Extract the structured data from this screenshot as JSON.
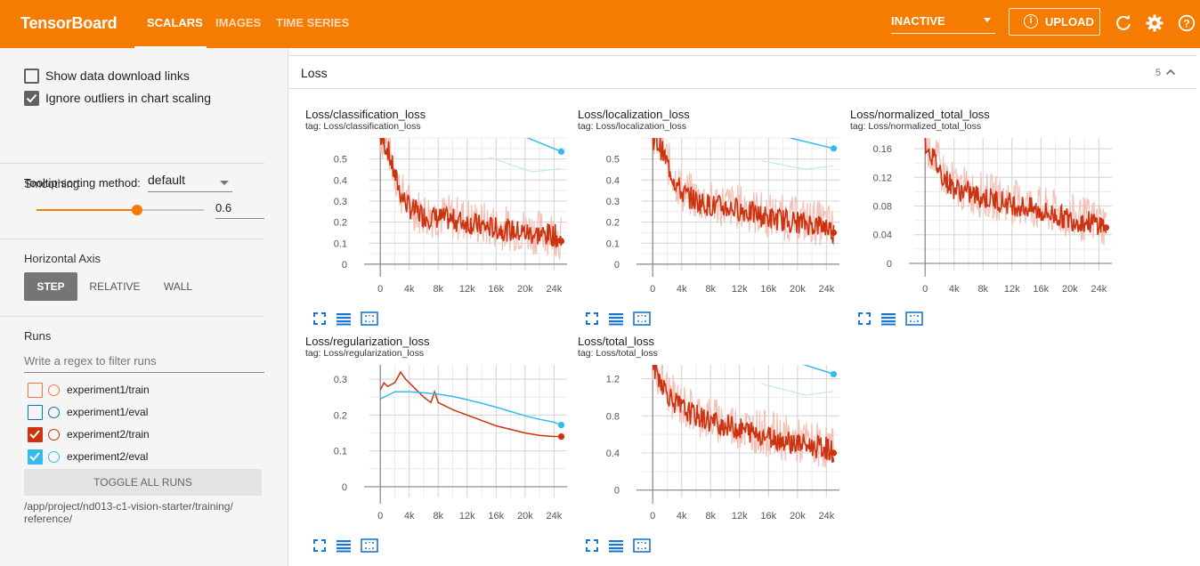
{
  "header": {
    "brand": "TensorBoard",
    "tabs": [
      {
        "label": "SCALARS",
        "active": true
      },
      {
        "label": "IMAGES",
        "active": false
      },
      {
        "label": "TIME SERIES",
        "active": false
      }
    ],
    "status_select": "INACTIVE",
    "upload_label": "UPLOAD",
    "icons": [
      "refresh-icon",
      "settings-gear-icon",
      "help-icon"
    ]
  },
  "sidebar": {
    "show_download_links": {
      "label": "Show data download links",
      "checked": false
    },
    "ignore_outliers": {
      "label": "Ignore outliers in chart scaling",
      "checked": true
    },
    "tooltip_sorting": {
      "label": "Tooltip sorting method:",
      "value": "default"
    },
    "smoothing": {
      "title": "Smoothing",
      "value": "0.6",
      "fraction": 0.6
    },
    "horizontal_axis": {
      "title": "Horizontal Axis",
      "options": [
        "STEP",
        "RELATIVE",
        "WALL"
      ],
      "selected": "STEP"
    },
    "runs": {
      "title": "Runs",
      "filter_placeholder": "Write a regex to filter runs",
      "items": [
        {
          "label": "experiment1/train",
          "checked": false,
          "color": "#ff7043"
        },
        {
          "label": "experiment1/eval",
          "checked": false,
          "color": "#0077bb"
        },
        {
          "label": "experiment2/train",
          "checked": true,
          "color": "#cc3311"
        },
        {
          "label": "experiment2/eval",
          "checked": true,
          "color": "#33bbee"
        }
      ],
      "toggle_label": "TOGGLE ALL RUNS",
      "log_dir": "/app/project/nd013-c1-vision-starter/training/\nreference/"
    }
  },
  "main": {
    "category": {
      "title": "Loss",
      "count": "5"
    },
    "card_icons": [
      "fullscreen-icon",
      "toggle-y-log-icon",
      "fit-domain-icon"
    ]
  },
  "colors": {
    "accent": "#f57c00",
    "train": "#cc3311",
    "train_raw": "#f2c0b5",
    "eval": "#33bbee",
    "eval_raw": "#bfe6f5"
  },
  "chart_data": [
    {
      "type": "line",
      "title": "Loss/classification_loss",
      "tag": "tag: Loss/classification_loss",
      "x_ticks": [
        "0",
        "4k",
        "8k",
        "12k",
        "16k",
        "20k",
        "24k"
      ],
      "y_ticks": [
        "0",
        "0.1",
        "0.2",
        "0.3",
        "0.4",
        "0.5"
      ],
      "xlim": [
        -1500,
        25800
      ],
      "ylim": [
        -0.03,
        0.6
      ],
      "series": [
        {
          "name": "experiment2/train",
          "color": "#cc3311",
          "x": [
            0,
            1000,
            2000,
            3000,
            4000,
            6000,
            8000,
            10000,
            12000,
            14000,
            16000,
            18000,
            20000,
            22000,
            24000,
            25000
          ],
          "y": [
            0.6,
            0.55,
            0.42,
            0.32,
            0.27,
            0.23,
            0.22,
            0.21,
            0.2,
            0.18,
            0.17,
            0.16,
            0.15,
            0.14,
            0.14,
            0.11
          ]
        },
        {
          "name": "experiment2/eval",
          "color": "#33bbee",
          "x": [
            19000,
            25000
          ],
          "y": [
            0.62,
            0.535
          ]
        }
      ]
    },
    {
      "type": "line",
      "title": "Loss/localization_loss",
      "tag": "tag: Loss/localization_loss",
      "x_ticks": [
        "0",
        "4k",
        "8k",
        "12k",
        "16k",
        "20k",
        "24k"
      ],
      "y_ticks": [
        "0",
        "0.1",
        "0.2",
        "0.3",
        "0.4",
        "0.5"
      ],
      "xlim": [
        -1500,
        25800
      ],
      "ylim": [
        -0.03,
        0.6
      ],
      "series": [
        {
          "name": "experiment2/train",
          "color": "#cc3311",
          "x": [
            0,
            1000,
            2000,
            3000,
            4000,
            6000,
            8000,
            10000,
            12000,
            14000,
            16000,
            18000,
            20000,
            22000,
            24000,
            25000
          ],
          "y": [
            0.6,
            0.56,
            0.48,
            0.4,
            0.34,
            0.3,
            0.28,
            0.27,
            0.26,
            0.24,
            0.22,
            0.21,
            0.2,
            0.19,
            0.18,
            0.15
          ]
        },
        {
          "name": "experiment2/eval",
          "color": "#33bbee",
          "x": [
            19000,
            25000
          ],
          "y": [
            0.6,
            0.55
          ]
        }
      ]
    },
    {
      "type": "line",
      "title": "Loss/normalized_total_loss",
      "tag": "tag: Loss/normalized_total_loss",
      "x_ticks": [
        "0",
        "4k",
        "8k",
        "12k",
        "16k",
        "20k",
        "24k"
      ],
      "y_ticks": [
        "0",
        "0.04",
        "0.08",
        "0.12",
        "0.16"
      ],
      "xlim": [
        -1500,
        25800
      ],
      "ylim": [
        -0.01,
        0.175
      ],
      "series": [
        {
          "name": "experiment2/train",
          "color": "#cc3311",
          "x": [
            0,
            1000,
            2000,
            3000,
            4000,
            6000,
            8000,
            10000,
            12000,
            14000,
            16000,
            18000,
            20000,
            22000,
            24000,
            25000
          ],
          "y": [
            0.17,
            0.15,
            0.13,
            0.115,
            0.105,
            0.098,
            0.092,
            0.088,
            0.083,
            0.078,
            0.072,
            0.067,
            0.062,
            0.058,
            0.056,
            0.05
          ]
        }
      ]
    },
    {
      "type": "line",
      "title": "Loss/regularization_loss",
      "tag": "tag: Loss/regularization_loss",
      "x_ticks": [
        "0",
        "4k",
        "8k",
        "12k",
        "16k",
        "20k",
        "24k"
      ],
      "y_ticks": [
        "0",
        "0.1",
        "0.2",
        "0.3"
      ],
      "xlim": [
        -1500,
        25800
      ],
      "ylim": [
        -0.03,
        0.34
      ],
      "series": [
        {
          "name": "experiment2/train",
          "color": "#cc3311",
          "x": [
            0,
            500,
            1000,
            2000,
            2800,
            3500,
            4500,
            6000,
            7000,
            7500,
            8000,
            10000,
            12000,
            14000,
            16000,
            18000,
            20000,
            22000,
            24000,
            25000
          ],
          "y": [
            0.27,
            0.29,
            0.28,
            0.29,
            0.32,
            0.3,
            0.28,
            0.25,
            0.235,
            0.265,
            0.235,
            0.215,
            0.2,
            0.185,
            0.17,
            0.16,
            0.15,
            0.143,
            0.14,
            0.14
          ]
        },
        {
          "name": "experiment2/eval",
          "color": "#33bbee",
          "x": [
            0,
            2000,
            4000,
            6000,
            8000,
            10000,
            12000,
            14000,
            16000,
            18000,
            20000,
            22000,
            24000,
            25000
          ],
          "y": [
            0.245,
            0.265,
            0.265,
            0.262,
            0.258,
            0.252,
            0.243,
            0.233,
            0.222,
            0.21,
            0.198,
            0.188,
            0.18,
            0.172
          ]
        }
      ]
    },
    {
      "type": "line",
      "title": "Loss/total_loss",
      "tag": "tag: Loss/total_loss",
      "x_ticks": [
        "0",
        "4k",
        "8k",
        "12k",
        "16k",
        "20k",
        "24k"
      ],
      "y_ticks": [
        "0",
        "0.4",
        "0.8",
        "1.2"
      ],
      "xlim": [
        -1500,
        25800
      ],
      "ylim": [
        -0.08,
        1.35
      ],
      "series": [
        {
          "name": "experiment2/train",
          "color": "#cc3311",
          "x": [
            0,
            1000,
            2000,
            3000,
            4000,
            6000,
            8000,
            10000,
            12000,
            14000,
            16000,
            18000,
            20000,
            22000,
            24000,
            25000
          ],
          "y": [
            1.35,
            1.2,
            1.05,
            0.95,
            0.88,
            0.8,
            0.74,
            0.7,
            0.66,
            0.62,
            0.58,
            0.54,
            0.5,
            0.47,
            0.45,
            0.4
          ]
        },
        {
          "name": "experiment2/eval",
          "color": "#33bbee",
          "x": [
            19000,
            25000
          ],
          "y": [
            1.4,
            1.25
          ]
        }
      ]
    }
  ]
}
